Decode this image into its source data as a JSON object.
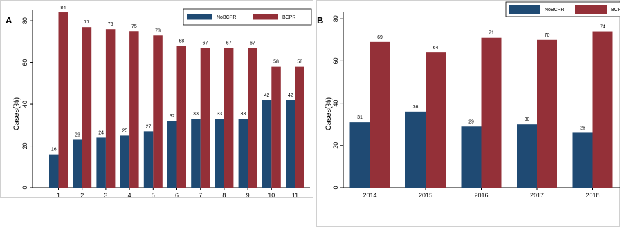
{
  "colors": {
    "nobcpr": "#1f4a73",
    "bcpr": "#943038"
  },
  "chart_data": [
    {
      "panel": "A",
      "type": "bar",
      "ylabel": "Cases(%)",
      "ylim": [
        0,
        85
      ],
      "yticks": [
        "0",
        "20",
        "40",
        "60",
        "80"
      ],
      "grid": false,
      "legend_position": "top-right",
      "categories": [
        "1",
        "2",
        "3",
        "4",
        "5",
        "6",
        "7",
        "8",
        "9",
        "10",
        "11"
      ],
      "series": [
        {
          "name": "NoBCPR",
          "values": [
            16,
            23,
            24,
            25,
            27,
            32,
            33,
            33,
            33,
            42,
            42
          ]
        },
        {
          "name": "BCPR",
          "values": [
            84,
            77,
            76,
            75,
            73,
            68,
            67,
            67,
            67,
            58,
            58
          ]
        }
      ]
    },
    {
      "panel": "B",
      "type": "bar",
      "ylabel": "Cases(%)",
      "ylim": [
        0,
        83
      ],
      "yticks": [
        "0",
        "20",
        "40",
        "60",
        "80"
      ],
      "grid": false,
      "legend_position": "top-right",
      "categories": [
        "2014",
        "2015",
        "2016",
        "2017",
        "2018"
      ],
      "series": [
        {
          "name": "NoBCPR",
          "values": [
            31,
            36,
            29,
            30,
            26
          ]
        },
        {
          "name": "BCPR",
          "values": [
            69,
            64,
            71,
            70,
            74
          ]
        }
      ]
    }
  ]
}
